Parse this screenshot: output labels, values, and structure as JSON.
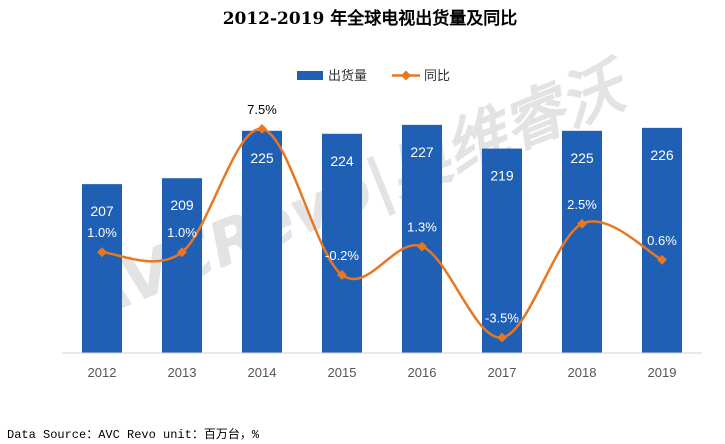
{
  "chart_data": {
    "type": "bar",
    "title": "2012-2019 年全球电视出货量及同比",
    "categories": [
      "2012",
      "2013",
      "2014",
      "2015",
      "2016",
      "2017",
      "2018",
      "2019"
    ],
    "series": [
      {
        "name": "出货量",
        "type": "bar",
        "values": [
          207,
          209,
          225,
          224,
          227,
          219,
          225,
          226
        ],
        "labels": [
          "207",
          "209",
          "225",
          "224",
          "227",
          "219",
          "225",
          "226"
        ],
        "color": "#1f5fb4"
      },
      {
        "name": "同比",
        "type": "line",
        "values": [
          1.0,
          1.0,
          7.5,
          -0.2,
          1.3,
          -3.5,
          2.5,
          0.6
        ],
        "labels": [
          "1.0%",
          "1.0%",
          "7.5%",
          "-0.2%",
          "1.3%",
          "-3.5%",
          "2.5%",
          "0.6%"
        ],
        "color": "#e87722"
      }
    ],
    "bar_axis_range": [
      150,
      230
    ],
    "line_axis_range": [
      -5,
      9.5
    ],
    "grid": false,
    "legend_position": "top-right"
  },
  "watermark": "AVCRevo|奥维睿沃",
  "footer": {
    "source": "Data Source：AVC Revo   unit：百万台，%"
  }
}
